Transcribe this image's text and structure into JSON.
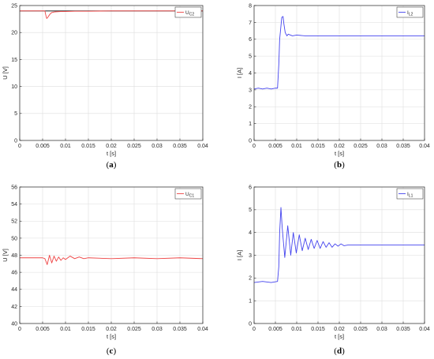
{
  "colors": {
    "red": "#ee4444",
    "blue": "#4444ee",
    "black": "#222222",
    "grid": "#dedede",
    "axis": "#262626"
  },
  "chart_data": [
    {
      "id": "a",
      "type": "line",
      "caption": {
        "open": "(",
        "letter": "a",
        "close": ")"
      },
      "xlabel": "t [s]",
      "ylabel": "U [V]",
      "xlim": [
        0,
        0.04
      ],
      "ylim": [
        0,
        25
      ],
      "xticks": [
        0,
        0.005,
        0.01,
        0.015,
        0.02,
        0.025,
        0.03,
        0.035,
        0.04
      ],
      "xtick_labels": [
        "0",
        "0.005",
        "0.01",
        "0.015",
        "0.02",
        "0.025",
        "0.03",
        "0.035",
        "0.04"
      ],
      "yticks": [
        0,
        5,
        10,
        15,
        20,
        25
      ],
      "ytick_labels": [
        "0",
        "5",
        "10",
        "15",
        "20",
        "25"
      ],
      "grid": true,
      "legend": {
        "position": "top-right",
        "main": "U",
        "sub": "C2",
        "color": "#ee4444"
      },
      "reference_line": {
        "y": 24,
        "color": "#222222"
      },
      "series": [
        {
          "name": "UC2",
          "color": "#ee4444",
          "x": [
            0,
            0.0055,
            0.0057,
            0.0059,
            0.0062,
            0.0066,
            0.007,
            0.0075,
            0.008,
            0.009,
            0.01,
            0.012,
            0.015,
            0.02,
            0.025,
            0.03,
            0.035,
            0.04
          ],
          "y": [
            24,
            24,
            23.2,
            22.6,
            22.9,
            23.4,
            23.7,
            23.8,
            23.85,
            23.9,
            23.9,
            23.95,
            23.95,
            24,
            24,
            24,
            24,
            24
          ]
        }
      ]
    },
    {
      "id": "b",
      "type": "line",
      "caption": {
        "open": "(",
        "letter": "b",
        "close": ")"
      },
      "xlabel": "t [s]",
      "ylabel": "I [A]",
      "xlim": [
        0,
        0.04
      ],
      "ylim": [
        0,
        8
      ],
      "xticks": [
        0,
        0.005,
        0.01,
        0.015,
        0.02,
        0.025,
        0.03,
        0.035,
        0.04
      ],
      "xtick_labels": [
        "0",
        "0.005",
        "0.01",
        "0.015",
        "0.02",
        "0.025",
        "0.03",
        "0.035",
        "0.04"
      ],
      "yticks": [
        0,
        1,
        2,
        3,
        4,
        5,
        6,
        7,
        8
      ],
      "ytick_labels": [
        "0",
        "1",
        "2",
        "3",
        "4",
        "5",
        "6",
        "7",
        "8"
      ],
      "grid": true,
      "legend": {
        "position": "top-right",
        "main": "I",
        "sub": "L2",
        "color": "#4444ee"
      },
      "series": [
        {
          "name": "IL2",
          "color": "#4444ee",
          "x": [
            0,
            0.001,
            0.002,
            0.003,
            0.004,
            0.005,
            0.0055,
            0.0058,
            0.006,
            0.0065,
            0.0068,
            0.007,
            0.0073,
            0.0077,
            0.008,
            0.009,
            0.01,
            0.012,
            0.015,
            0.02,
            0.025,
            0.03,
            0.035,
            0.04
          ],
          "y": [
            3.05,
            3.1,
            3.05,
            3.1,
            3.05,
            3.1,
            3.1,
            4.5,
            6.0,
            7.3,
            7.35,
            6.9,
            6.4,
            6.2,
            6.3,
            6.2,
            6.25,
            6.2,
            6.2,
            6.2,
            6.2,
            6.2,
            6.2,
            6.2
          ]
        }
      ]
    },
    {
      "id": "c",
      "type": "line",
      "caption": {
        "open": "(",
        "letter": "c",
        "close": ")"
      },
      "xlabel": "t [s]",
      "ylabel": "U [V]",
      "xlim": [
        0,
        0.04
      ],
      "ylim": [
        40,
        56
      ],
      "xticks": [
        0,
        0.005,
        0.01,
        0.015,
        0.02,
        0.025,
        0.03,
        0.035,
        0.04
      ],
      "xtick_labels": [
        "0",
        "0.005",
        "0.01",
        "0.015",
        "0.02",
        "0.025",
        "0.03",
        "0.035",
        "0.04"
      ],
      "yticks": [
        40,
        42,
        44,
        46,
        48,
        50,
        52,
        54,
        56
      ],
      "ytick_labels": [
        "40",
        "42",
        "44",
        "46",
        "48",
        "50",
        "52",
        "54",
        "56"
      ],
      "grid": true,
      "legend": {
        "position": "top-right",
        "main": "U",
        "sub": "C1",
        "color": "#ee4444"
      },
      "series": [
        {
          "name": "UC1",
          "color": "#ee4444",
          "x": [
            0,
            0.005,
            0.0055,
            0.006,
            0.0065,
            0.007,
            0.0075,
            0.008,
            0.0085,
            0.009,
            0.0095,
            0.01,
            0.011,
            0.012,
            0.013,
            0.014,
            0.015,
            0.02,
            0.025,
            0.03,
            0.035,
            0.04
          ],
          "y": [
            47.7,
            47.7,
            47.6,
            46.9,
            48.0,
            47.1,
            47.9,
            47.3,
            47.8,
            47.4,
            47.7,
            47.5,
            47.9,
            47.6,
            47.8,
            47.6,
            47.7,
            47.6,
            47.7,
            47.6,
            47.7,
            47.6
          ]
        }
      ]
    },
    {
      "id": "d",
      "type": "line",
      "caption": {
        "open": "(",
        "letter": "d",
        "close": ")"
      },
      "xlabel": "t [s]",
      "ylabel": "I [A]",
      "xlim": [
        0,
        0.04
      ],
      "ylim": [
        0,
        6
      ],
      "xticks": [
        0,
        0.005,
        0.01,
        0.015,
        0.02,
        0.025,
        0.03,
        0.035,
        0.04
      ],
      "xtick_labels": [
        "0",
        "0.005",
        "0.01",
        "0.015",
        "0.02",
        "0.025",
        "0.03",
        "0.035",
        "0.04"
      ],
      "yticks": [
        0,
        1,
        2,
        3,
        4,
        5,
        6
      ],
      "ytick_labels": [
        "0",
        "1",
        "2",
        "3",
        "4",
        "5",
        "6"
      ],
      "grid": true,
      "legend": {
        "position": "top-right",
        "main": "I",
        "sub": "L1",
        "color": "#4444ee"
      },
      "series": [
        {
          "name": "IL1",
          "color": "#4444ee",
          "x": [
            0,
            0.002,
            0.004,
            0.0055,
            0.0058,
            0.006,
            0.0063,
            0.0066,
            0.0072,
            0.0079,
            0.0086,
            0.0092,
            0.0099,
            0.0106,
            0.0113,
            0.012,
            0.0127,
            0.0134,
            0.0141,
            0.0148,
            0.0155,
            0.0162,
            0.0169,
            0.0176,
            0.0183,
            0.019,
            0.0197,
            0.0204,
            0.0211,
            0.022,
            0.025,
            0.03,
            0.035,
            0.04
          ],
          "y": [
            1.8,
            1.85,
            1.8,
            1.85,
            2.5,
            4.0,
            5.1,
            4.2,
            2.9,
            4.3,
            3.0,
            4.0,
            3.1,
            3.9,
            3.2,
            3.75,
            3.25,
            3.7,
            3.3,
            3.65,
            3.3,
            3.6,
            3.35,
            3.55,
            3.35,
            3.5,
            3.4,
            3.5,
            3.42,
            3.45,
            3.45,
            3.45,
            3.45,
            3.45
          ]
        }
      ]
    }
  ]
}
